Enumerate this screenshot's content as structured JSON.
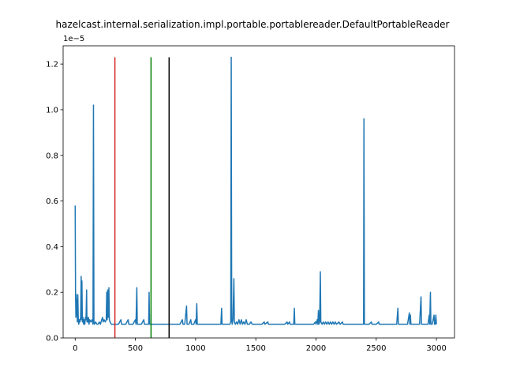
{
  "chart_data": {
    "type": "line",
    "title": "hazelcast.internal.serialization.impl.portable.portablereader.DefaultPortableReader",
    "y_offset_label": "1e−5",
    "xlim": [
      -100,
      3150
    ],
    "ylim": [
      0,
      1.28
    ],
    "x_ticks": [
      0,
      500,
      1000,
      1500,
      2000,
      2500,
      3000
    ],
    "x_tick_labels": [
      "0",
      "500",
      "1000",
      "1500",
      "2000",
      "2500",
      "3000"
    ],
    "y_ticks": [
      0.0,
      0.2,
      0.4,
      0.6,
      0.8,
      1.0,
      1.2
    ],
    "y_tick_labels": [
      "0.0",
      "0.2",
      "0.4",
      "0.6",
      "0.8",
      "1.0",
      "1.2"
    ],
    "grid": false,
    "series": [
      {
        "color": "#1f77b4",
        "points": [
          [
            0,
            0.58
          ],
          [
            3,
            0.2
          ],
          [
            6,
            0.09
          ],
          [
            9,
            0.19
          ],
          [
            12,
            0.1
          ],
          [
            15,
            0.17
          ],
          [
            18,
            0.07
          ],
          [
            22,
            0.19
          ],
          [
            26,
            0.08
          ],
          [
            30,
            0.06
          ],
          [
            35,
            0.08
          ],
          [
            40,
            0.07
          ],
          [
            45,
            0.09
          ],
          [
            50,
            0.27
          ],
          [
            52,
            0.08
          ],
          [
            56,
            0.25
          ],
          [
            60,
            0.07
          ],
          [
            65,
            0.09
          ],
          [
            70,
            0.06
          ],
          [
            75,
            0.08
          ],
          [
            80,
            0.06
          ],
          [
            85,
            0.09
          ],
          [
            90,
            0.08
          ],
          [
            95,
            0.21
          ],
          [
            98,
            0.07
          ],
          [
            102,
            0.09
          ],
          [
            106,
            0.07
          ],
          [
            110,
            0.09
          ],
          [
            115,
            0.06
          ],
          [
            120,
            0.08
          ],
          [
            130,
            0.07
          ],
          [
            140,
            0.08
          ],
          [
            148,
            0.06
          ],
          [
            152,
            1.02
          ],
          [
            156,
            0.07
          ],
          [
            160,
            0.06
          ],
          [
            170,
            0.07
          ],
          [
            180,
            0.06
          ],
          [
            190,
            0.06
          ],
          [
            200,
            0.07
          ],
          [
            210,
            0.06
          ],
          [
            220,
            0.08
          ],
          [
            228,
            0.09
          ],
          [
            232,
            0.07
          ],
          [
            240,
            0.08
          ],
          [
            250,
            0.07
          ],
          [
            258,
            0.08
          ],
          [
            262,
            0.2
          ],
          [
            266,
            0.08
          ],
          [
            270,
            0.21
          ],
          [
            274,
            0.09
          ],
          [
            280,
            0.22
          ],
          [
            284,
            0.08
          ],
          [
            290,
            0.07
          ],
          [
            300,
            0.06
          ],
          [
            320,
            0.06
          ],
          [
            340,
            0.06
          ],
          [
            360,
            0.06
          ],
          [
            380,
            0.08
          ],
          [
            385,
            0.06
          ],
          [
            400,
            0.06
          ],
          [
            420,
            0.06
          ],
          [
            440,
            0.08
          ],
          [
            445,
            0.06
          ],
          [
            460,
            0.06
          ],
          [
            480,
            0.06
          ],
          [
            500,
            0.08
          ],
          [
            505,
            0.06
          ],
          [
            512,
            0.22
          ],
          [
            516,
            0.06
          ],
          [
            530,
            0.06
          ],
          [
            550,
            0.06
          ],
          [
            570,
            0.08
          ],
          [
            575,
            0.06
          ],
          [
            590,
            0.06
          ],
          [
            610,
            0.06
          ],
          [
            614,
            0.2
          ],
          [
            618,
            0.06
          ],
          [
            630,
            0.06
          ],
          [
            650,
            0.06
          ],
          [
            670,
            0.06
          ],
          [
            690,
            0.06
          ],
          [
            710,
            0.06
          ],
          [
            730,
            0.06
          ],
          [
            750,
            0.06
          ],
          [
            770,
            0.06
          ],
          [
            790,
            0.06
          ],
          [
            810,
            0.06
          ],
          [
            830,
            0.06
          ],
          [
            850,
            0.06
          ],
          [
            870,
            0.06
          ],
          [
            890,
            0.08
          ],
          [
            895,
            0.06
          ],
          [
            910,
            0.06
          ],
          [
            925,
            0.14
          ],
          [
            929,
            0.06
          ],
          [
            945,
            0.06
          ],
          [
            960,
            0.08
          ],
          [
            965,
            0.06
          ],
          [
            985,
            0.06
          ],
          [
            1000,
            0.08
          ],
          [
            1004,
            0.06
          ],
          [
            1010,
            0.15
          ],
          [
            1014,
            0.06
          ],
          [
            1030,
            0.06
          ],
          [
            1050,
            0.06
          ],
          [
            1070,
            0.06
          ],
          [
            1090,
            0.06
          ],
          [
            1110,
            0.06
          ],
          [
            1130,
            0.06
          ],
          [
            1150,
            0.06
          ],
          [
            1170,
            0.06
          ],
          [
            1190,
            0.06
          ],
          [
            1210,
            0.06
          ],
          [
            1216,
            0.13
          ],
          [
            1220,
            0.06
          ],
          [
            1240,
            0.06
          ],
          [
            1260,
            0.06
          ],
          [
            1275,
            0.06
          ],
          [
            1285,
            0.06
          ],
          [
            1292,
            0.07
          ],
          [
            1296,
            1.23
          ],
          [
            1300,
            0.08
          ],
          [
            1304,
            0.06
          ],
          [
            1310,
            0.08
          ],
          [
            1318,
            0.26
          ],
          [
            1322,
            0.07
          ],
          [
            1330,
            0.06
          ],
          [
            1340,
            0.07
          ],
          [
            1350,
            0.06
          ],
          [
            1360,
            0.08
          ],
          [
            1370,
            0.06
          ],
          [
            1380,
            0.08
          ],
          [
            1390,
            0.06
          ],
          [
            1400,
            0.07
          ],
          [
            1410,
            0.06
          ],
          [
            1420,
            0.08
          ],
          [
            1430,
            0.06
          ],
          [
            1445,
            0.06
          ],
          [
            1460,
            0.07
          ],
          [
            1470,
            0.06
          ],
          [
            1490,
            0.06
          ],
          [
            1510,
            0.06
          ],
          [
            1530,
            0.06
          ],
          [
            1550,
            0.06
          ],
          [
            1570,
            0.07
          ],
          [
            1575,
            0.06
          ],
          [
            1600,
            0.07
          ],
          [
            1605,
            0.06
          ],
          [
            1620,
            0.06
          ],
          [
            1640,
            0.06
          ],
          [
            1660,
            0.06
          ],
          [
            1680,
            0.06
          ],
          [
            1700,
            0.06
          ],
          [
            1720,
            0.06
          ],
          [
            1740,
            0.06
          ],
          [
            1760,
            0.07
          ],
          [
            1765,
            0.06
          ],
          [
            1780,
            0.07
          ],
          [
            1785,
            0.06
          ],
          [
            1800,
            0.06
          ],
          [
            1815,
            0.06
          ],
          [
            1820,
            0.13
          ],
          [
            1824,
            0.06
          ],
          [
            1840,
            0.06
          ],
          [
            1860,
            0.06
          ],
          [
            1880,
            0.06
          ],
          [
            1900,
            0.06
          ],
          [
            1920,
            0.06
          ],
          [
            1940,
            0.06
          ],
          [
            1960,
            0.06
          ],
          [
            1980,
            0.06
          ],
          [
            1995,
            0.07
          ],
          [
            2000,
            0.06
          ],
          [
            2010,
            0.08
          ],
          [
            2015,
            0.06
          ],
          [
            2020,
            0.12
          ],
          [
            2024,
            0.06
          ],
          [
            2030,
            0.07
          ],
          [
            2036,
            0.29
          ],
          [
            2040,
            0.07
          ],
          [
            2050,
            0.06
          ],
          [
            2060,
            0.07
          ],
          [
            2070,
            0.06
          ],
          [
            2080,
            0.07
          ],
          [
            2090,
            0.06
          ],
          [
            2100,
            0.07
          ],
          [
            2110,
            0.06
          ],
          [
            2120,
            0.07
          ],
          [
            2130,
            0.06
          ],
          [
            2140,
            0.07
          ],
          [
            2150,
            0.06
          ],
          [
            2160,
            0.07
          ],
          [
            2170,
            0.06
          ],
          [
            2190,
            0.07
          ],
          [
            2200,
            0.06
          ],
          [
            2220,
            0.07
          ],
          [
            2225,
            0.06
          ],
          [
            2250,
            0.06
          ],
          [
            2270,
            0.06
          ],
          [
            2290,
            0.06
          ],
          [
            2310,
            0.06
          ],
          [
            2330,
            0.06
          ],
          [
            2350,
            0.06
          ],
          [
            2370,
            0.06
          ],
          [
            2390,
            0.06
          ],
          [
            2395,
            0.06
          ],
          [
            2398,
            0.96
          ],
          [
            2402,
            0.06
          ],
          [
            2420,
            0.06
          ],
          [
            2440,
            0.06
          ],
          [
            2460,
            0.07
          ],
          [
            2465,
            0.06
          ],
          [
            2480,
            0.06
          ],
          [
            2500,
            0.06
          ],
          [
            2520,
            0.07
          ],
          [
            2525,
            0.06
          ],
          [
            2550,
            0.06
          ],
          [
            2570,
            0.06
          ],
          [
            2590,
            0.06
          ],
          [
            2610,
            0.06
          ],
          [
            2630,
            0.06
          ],
          [
            2650,
            0.06
          ],
          [
            2670,
            0.06
          ],
          [
            2680,
            0.13
          ],
          [
            2684,
            0.06
          ],
          [
            2700,
            0.06
          ],
          [
            2720,
            0.06
          ],
          [
            2740,
            0.06
          ],
          [
            2760,
            0.06
          ],
          [
            2775,
            0.11
          ],
          [
            2779,
            0.06
          ],
          [
            2784,
            0.1
          ],
          [
            2788,
            0.06
          ],
          [
            2800,
            0.06
          ],
          [
            2820,
            0.06
          ],
          [
            2840,
            0.06
          ],
          [
            2860,
            0.06
          ],
          [
            2872,
            0.18
          ],
          [
            2876,
            0.06
          ],
          [
            2890,
            0.06
          ],
          [
            2910,
            0.06
          ],
          [
            2930,
            0.06
          ],
          [
            2940,
            0.1
          ],
          [
            2944,
            0.06
          ],
          [
            2950,
            0.2
          ],
          [
            2954,
            0.06
          ],
          [
            2965,
            0.06
          ],
          [
            2980,
            0.1
          ],
          [
            2984,
            0.06
          ],
          [
            2990,
            0.06
          ],
          [
            2995,
            0.1
          ],
          [
            3000,
            0.06
          ]
        ]
      }
    ],
    "vertical_lines": [
      {
        "x": 330,
        "color": "#d62728"
      },
      {
        "x": 630,
        "color": "#008000"
      },
      {
        "x": 780,
        "color": "#000000"
      }
    ],
    "vertical_line_top": 1.23
  }
}
